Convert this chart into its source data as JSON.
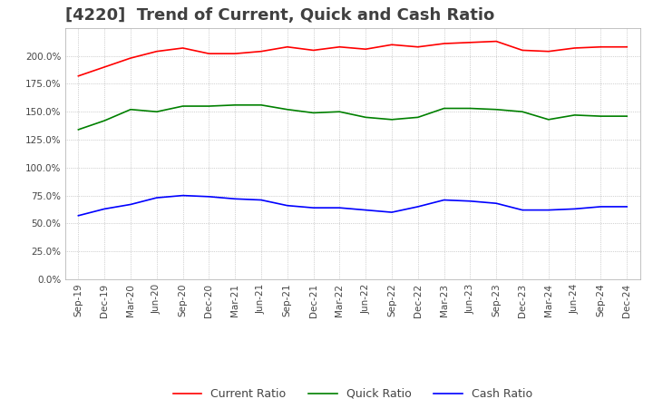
{
  "title": "[4220]  Trend of Current, Quick and Cash Ratio",
  "x_labels": [
    "Sep-19",
    "Dec-19",
    "Mar-20",
    "Jun-20",
    "Sep-20",
    "Dec-20",
    "Mar-21",
    "Jun-21",
    "Sep-21",
    "Dec-21",
    "Mar-22",
    "Jun-22",
    "Sep-22",
    "Dec-22",
    "Mar-23",
    "Jun-23",
    "Sep-23",
    "Dec-23",
    "Mar-24",
    "Jun-24",
    "Sep-24",
    "Dec-24"
  ],
  "current_ratio": [
    1.82,
    1.9,
    1.98,
    2.04,
    2.07,
    2.02,
    2.02,
    2.04,
    2.08,
    2.05,
    2.08,
    2.06,
    2.1,
    2.08,
    2.11,
    2.12,
    2.13,
    2.05,
    2.04,
    2.07,
    2.08,
    2.08
  ],
  "quick_ratio": [
    1.34,
    1.42,
    1.52,
    1.5,
    1.55,
    1.55,
    1.56,
    1.56,
    1.52,
    1.49,
    1.5,
    1.45,
    1.43,
    1.45,
    1.53,
    1.53,
    1.52,
    1.5,
    1.43,
    1.47,
    1.46,
    1.46
  ],
  "cash_ratio": [
    0.57,
    0.63,
    0.67,
    0.73,
    0.75,
    0.74,
    0.72,
    0.71,
    0.66,
    0.64,
    0.64,
    0.62,
    0.6,
    0.65,
    0.71,
    0.7,
    0.68,
    0.62,
    0.62,
    0.63,
    0.65,
    0.65
  ],
  "ylim": [
    0.0,
    2.25
  ],
  "yticks": [
    0.0,
    0.25,
    0.5,
    0.75,
    1.0,
    1.25,
    1.5,
    1.75,
    2.0
  ],
  "current_color": "#ff0000",
  "quick_color": "#008000",
  "cash_color": "#0000ff",
  "background_color": "#ffffff",
  "grid_color": "#aaaaaa",
  "title_color": "#404040",
  "title_fontsize": 13,
  "legend_labels": [
    "Current Ratio",
    "Quick Ratio",
    "Cash Ratio"
  ]
}
